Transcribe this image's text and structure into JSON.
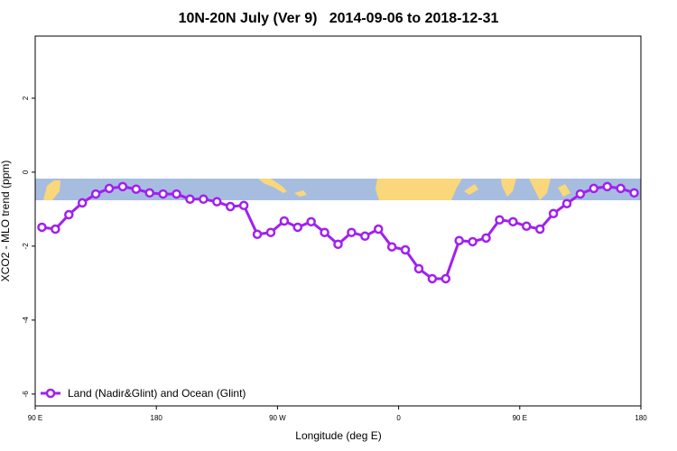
{
  "chart_data": {
    "type": "line",
    "title": "10N-20N July (Ver 9)   2014-09-06 to 2018-12-31",
    "x_label": "Longitude (deg E)",
    "y_label": "XCO2 - MLO trend (ppm)",
    "x": [
      95,
      105,
      115,
      125,
      135,
      145,
      155,
      165,
      175,
      185,
      195,
      205,
      215,
      225,
      235,
      245,
      255,
      265,
      275,
      285,
      295,
      305,
      315,
      325,
      335,
      345,
      355,
      365,
      375,
      385,
      395,
      405,
      415,
      425,
      435,
      445,
      455,
      465,
      475,
      485,
      495,
      505,
      515,
      525,
      535
    ],
    "series": [
      {
        "name": "Land (Nadir&Glint) and Ocean (Glint)",
        "color": "#a020f0",
        "values": [
          -1.49,
          -1.54,
          -1.15,
          -0.83,
          -0.59,
          -0.44,
          -0.39,
          -0.46,
          -0.56,
          -0.59,
          -0.59,
          -0.73,
          -0.73,
          -0.8,
          -0.93,
          -0.9,
          -1.68,
          -1.63,
          -1.32,
          -1.49,
          -1.34,
          -1.63,
          -1.95,
          -1.63,
          -1.73,
          -1.54,
          -2.02,
          -2.1,
          -2.61,
          -2.88,
          -2.88,
          -1.85,
          -1.88,
          -1.78,
          -1.29,
          -1.34,
          -1.46,
          -1.54,
          -1.12,
          -0.85,
          -0.59,
          -0.44,
          -0.39,
          -0.44,
          -0.56
        ]
      }
    ],
    "xlim": [
      90,
      540
    ],
    "xticks": [
      {
        "value": 90,
        "label": "90 E"
      },
      180,
      {
        "value": 270,
        "label": "90 W"
      },
      {
        "value": 360,
        "label": "0"
      },
      {
        "value": 450,
        "label": "90 E"
      },
      {
        "value": 540,
        "label": "180"
      }
    ],
    "ylim": [
      -6.32,
      3.68
    ],
    "yticks": [
      2,
      0,
      -2,
      -4,
      -6
    ],
    "legend": "bottom-left"
  }
}
